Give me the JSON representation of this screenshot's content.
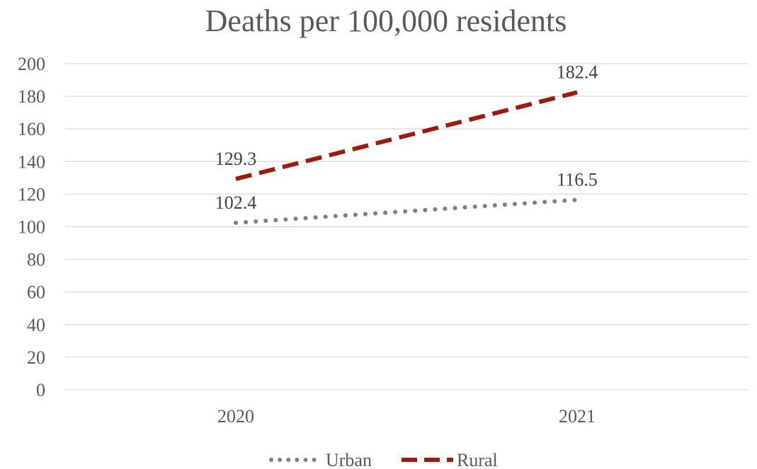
{
  "chart_data": {
    "type": "line",
    "title": "Deaths per 100,000 residents",
    "categories": [
      "2020",
      "2021"
    ],
    "series": [
      {
        "name": "Urban",
        "values": [
          102.4,
          116.5
        ],
        "labels": [
          "102.4",
          "116.5"
        ],
        "color": "#808080",
        "style": "dotted"
      },
      {
        "name": "Rural",
        "values": [
          129.3,
          182.4
        ],
        "labels": [
          "129.3",
          "182.4"
        ],
        "color": "#9b1b0e",
        "style": "dashed"
      }
    ],
    "ylim": [
      0,
      200
    ],
    "yticks": [
      0,
      20,
      40,
      60,
      80,
      100,
      120,
      140,
      160,
      180,
      200
    ],
    "ytick_labels": [
      "0",
      "20",
      "40",
      "60",
      "80",
      "100",
      "120",
      "140",
      "160",
      "180",
      "200"
    ],
    "xlabel": "",
    "ylabel": "",
    "grid": true,
    "legend_position": "bottom"
  }
}
